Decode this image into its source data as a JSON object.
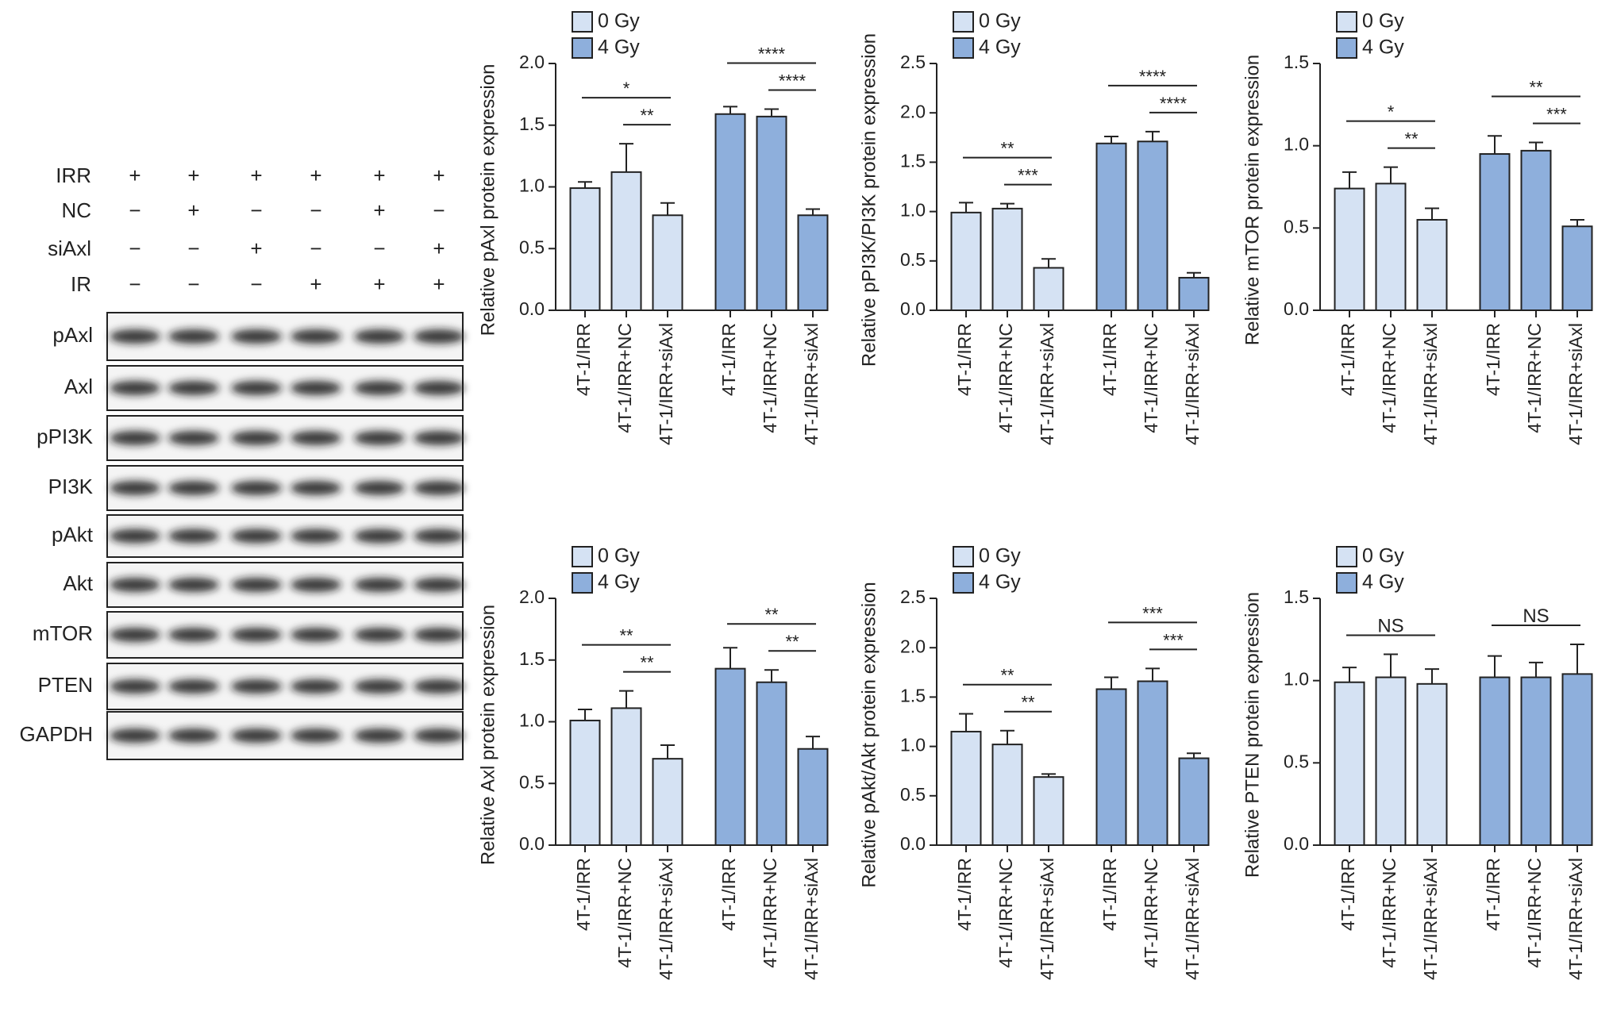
{
  "blot": {
    "conditions": [
      {
        "label": "IRR",
        "signs": [
          "+",
          "+",
          "+",
          "+",
          "+",
          "+"
        ]
      },
      {
        "label": "NC",
        "signs": [
          "−",
          "+",
          "−",
          "−",
          "+",
          "−"
        ]
      },
      {
        "label": "siAxl",
        "signs": [
          "−",
          "−",
          "+",
          "−",
          "−",
          "+"
        ]
      },
      {
        "label": "IR",
        "signs": [
          "−",
          "−",
          "−",
          "+",
          "+",
          "+"
        ]
      }
    ],
    "bands": [
      "pAxl",
      "Axl",
      "pPI3K",
      "PI3K",
      "pAkt",
      "Akt",
      "mTOR",
      "PTEN",
      "GAPDH"
    ]
  },
  "chart_data": [
    {
      "type": "bar",
      "y_label": "Relative pAxl protein expression",
      "legend": "top-left",
      "categories": [
        "4T-1/IRR",
        "4T-1/IRR+NC",
        "4T-1/IRR+siAxl",
        "4T-1/IRR",
        "4T-1/IRR+NC",
        "4T-1/IRR+siAxl"
      ],
      "series": [
        {
          "name": "0 Gy",
          "color": "#d5e2f3",
          "values": [
            0.99,
            1.12,
            0.77,
            null,
            null,
            null
          ],
          "errors": [
            0.05,
            0.23,
            0.1,
            null,
            null,
            null
          ]
        },
        {
          "name": "4 Gy",
          "color": "#8eafdc",
          "values": [
            null,
            null,
            null,
            1.59,
            1.57,
            0.77
          ],
          "errors": [
            null,
            null,
            null,
            0.06,
            0.06,
            0.05
          ]
        }
      ],
      "ylim": [
        0,
        2
      ],
      "yticks": [
        {
          "value": 0,
          "label": "0.0"
        },
        0.5,
        {
          "value": 1,
          "label": "1.0"
        },
        1.5,
        {
          "value": 2,
          "label": "2.0"
        }
      ],
      "annotations": [
        {
          "label": "*",
          "from": 0,
          "to": 2
        },
        {
          "label": "**",
          "from": 1,
          "to": 2
        },
        {
          "label": "****",
          "from": 3,
          "to": 5
        },
        {
          "label": "****",
          "from": 4,
          "to": 5
        }
      ]
    },
    {
      "type": "bar",
      "y_label": "Relative pPI3K/PI3K protein expression",
      "legend": "top-left",
      "categories": [
        "4T-1/IRR",
        "4T-1/IRR+NC",
        "4T-1/IRR+siAxl",
        "4T-1/IRR",
        "4T-1/IRR+NC",
        "4T-1/IRR+siAxl"
      ],
      "series": [
        {
          "name": "0 Gy",
          "color": "#d5e2f3",
          "values": [
            0.99,
            1.03,
            0.43,
            null,
            null,
            null
          ],
          "errors": [
            0.1,
            0.05,
            0.09,
            null,
            null,
            null
          ]
        },
        {
          "name": "4 Gy",
          "color": "#8eafdc",
          "values": [
            null,
            null,
            null,
            1.69,
            1.71,
            0.33
          ],
          "errors": [
            null,
            null,
            null,
            0.07,
            0.1,
            0.05
          ]
        }
      ],
      "ylim": [
        0,
        2.5
      ],
      "yticks": [
        {
          "value": 0,
          "label": "0.0"
        },
        0.5,
        {
          "value": 1,
          "label": "1.0"
        },
        1.5,
        {
          "value": 2,
          "label": "2.0"
        },
        2.5
      ],
      "annotations": [
        {
          "label": "**",
          "from": 0,
          "to": 2
        },
        {
          "label": "***",
          "from": 1,
          "to": 2
        },
        {
          "label": "****",
          "from": 3,
          "to": 5
        },
        {
          "label": "****",
          "from": 4,
          "to": 5
        }
      ]
    },
    {
      "type": "bar",
      "y_label": "Relative mTOR protein expression",
      "legend": "top-left",
      "categories": [
        "4T-1/IRR",
        "4T-1/IRR+NC",
        "4T-1/IRR+siAxl",
        "4T-1/IRR",
        "4T-1/IRR+NC",
        "4T-1/IRR+siAxl"
      ],
      "series": [
        {
          "name": "0 Gy",
          "color": "#d5e2f3",
          "values": [
            0.74,
            0.77,
            0.55,
            null,
            null,
            null
          ],
          "errors": [
            0.1,
            0.1,
            0.07,
            null,
            null,
            null
          ]
        },
        {
          "name": "4 Gy",
          "color": "#8eafdc",
          "values": [
            null,
            null,
            null,
            0.95,
            0.97,
            0.51
          ],
          "errors": [
            null,
            null,
            null,
            0.11,
            0.05,
            0.04
          ]
        }
      ],
      "ylim": [
        0,
        1.5
      ],
      "yticks": [
        {
          "value": 0,
          "label": "0.0"
        },
        0.5,
        {
          "value": 1,
          "label": "1.0"
        },
        1.5
      ],
      "annotations": [
        {
          "label": "*",
          "from": 0,
          "to": 2
        },
        {
          "label": "**",
          "from": 1,
          "to": 2
        },
        {
          "label": "**",
          "from": 3,
          "to": 5
        },
        {
          "label": "***",
          "from": 4,
          "to": 5
        }
      ]
    },
    {
      "type": "bar",
      "y_label": "Relative Axl protein expression",
      "legend": "top-left",
      "categories": [
        "4T-1/IRR",
        "4T-1/IRR+NC",
        "4T-1/IRR+siAxl",
        "4T-1/IRR",
        "4T-1/IRR+NC",
        "4T-1/IRR+siAxl"
      ],
      "series": [
        {
          "name": "0 Gy",
          "color": "#d5e2f3",
          "values": [
            1.01,
            1.11,
            0.7,
            null,
            null,
            null
          ],
          "errors": [
            0.09,
            0.14,
            0.11,
            null,
            null,
            null
          ]
        },
        {
          "name": "4 Gy",
          "color": "#8eafdc",
          "values": [
            null,
            null,
            null,
            1.43,
            1.32,
            0.78
          ],
          "errors": [
            null,
            null,
            null,
            0.17,
            0.1,
            0.1
          ]
        }
      ],
      "ylim": [
        0,
        2
      ],
      "yticks": [
        {
          "value": 0,
          "label": "0.0"
        },
        0.5,
        {
          "value": 1,
          "label": "1.0"
        },
        1.5,
        {
          "value": 2,
          "label": "2.0"
        }
      ],
      "annotations": [
        {
          "label": "**",
          "from": 0,
          "to": 2
        },
        {
          "label": "**",
          "from": 1,
          "to": 2
        },
        {
          "label": "**",
          "from": 3,
          "to": 5
        },
        {
          "label": "**",
          "from": 4,
          "to": 5
        }
      ]
    },
    {
      "type": "bar",
      "y_label": "Relative pAkt/Akt protein expression",
      "legend": "top-left",
      "categories": [
        "4T-1/IRR",
        "4T-1/IRR+NC",
        "4T-1/IRR+siAxl",
        "4T-1/IRR",
        "4T-1/IRR+NC",
        "4T-1/IRR+siAxl"
      ],
      "series": [
        {
          "name": "0 Gy",
          "color": "#d5e2f3",
          "values": [
            1.15,
            1.02,
            0.69,
            null,
            null,
            null
          ],
          "errors": [
            0.18,
            0.14,
            0.03,
            null,
            null,
            null
          ]
        },
        {
          "name": "4 Gy",
          "color": "#8eafdc",
          "values": [
            null,
            null,
            null,
            1.58,
            1.66,
            0.88
          ],
          "errors": [
            null,
            null,
            null,
            0.12,
            0.13,
            0.05
          ]
        }
      ],
      "ylim": [
        0,
        2.5
      ],
      "yticks": [
        {
          "value": 0,
          "label": "0.0"
        },
        0.5,
        {
          "value": 1,
          "label": "1.0"
        },
        1.5,
        {
          "value": 2,
          "label": "2.0"
        },
        2.5
      ],
      "annotations": [
        {
          "label": "**",
          "from": 0,
          "to": 2
        },
        {
          "label": "**",
          "from": 1,
          "to": 2
        },
        {
          "label": "***",
          "from": 3,
          "to": 5
        },
        {
          "label": "***",
          "from": 4,
          "to": 5
        }
      ]
    },
    {
      "type": "bar",
      "y_label": "Relative PTEN protein expression",
      "legend": "top-left",
      "categories": [
        "4T-1/IRR",
        "4T-1/IRR+NC",
        "4T-1/IRR+siAxl",
        "4T-1/IRR",
        "4T-1/IRR+NC",
        "4T-1/IRR+siAxl"
      ],
      "series": [
        {
          "name": "0 Gy",
          "color": "#d5e2f3",
          "values": [
            0.99,
            1.02,
            0.98,
            null,
            null,
            null
          ],
          "errors": [
            0.09,
            0.14,
            0.09,
            null,
            null,
            null
          ]
        },
        {
          "name": "4 Gy",
          "color": "#8eafdc",
          "values": [
            null,
            null,
            null,
            1.02,
            1.02,
            1.04
          ],
          "errors": [
            null,
            null,
            null,
            0.13,
            0.09,
            0.18
          ]
        }
      ],
      "ylim": [
        0,
        1.5
      ],
      "yticks": [
        {
          "value": 0,
          "label": "0.0"
        },
        0.5,
        {
          "value": 1,
          "label": "1.0"
        },
        1.5
      ],
      "annotations": [
        {
          "label": "NS",
          "from": 0,
          "to": 2
        },
        {
          "label": "NS",
          "from": 3,
          "to": 5
        }
      ]
    }
  ]
}
